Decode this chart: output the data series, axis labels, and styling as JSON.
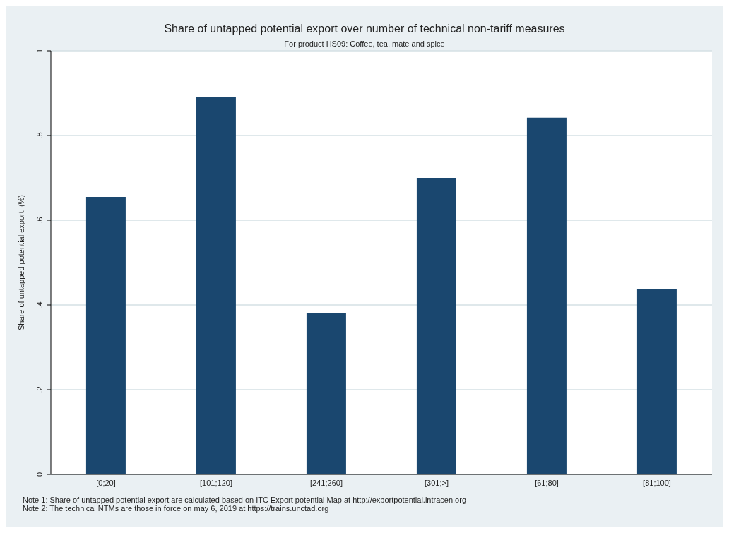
{
  "chart_data": {
    "type": "bar",
    "title": "Share of untapped potential export over number of technical non-tariff measures",
    "subtitle": "For product HS09: Coffee, tea, mate and spice",
    "ylabel": "Share of untapped potential export, (%)",
    "categories": [
      "[0;20]",
      "[101;120]",
      "[241;260]",
      "[301;>]",
      "[61;80]",
      "[81;100]"
    ],
    "values": [
      0.655,
      0.89,
      0.38,
      0.7,
      0.842,
      0.438
    ],
    "color": "#1a476f",
    "ylim": [
      0,
      1
    ],
    "yticks": [
      0,
      {
        "value": 0.2,
        "label": ".2"
      },
      {
        "value": 0.4,
        "label": ".4"
      },
      {
        "value": 0.6,
        "label": ".6"
      },
      {
        "value": 0.8,
        "label": ".8"
      },
      1
    ],
    "grid": "y",
    "annotations": [
      "Note 1: Share of untapped potential export are calculated based on ITC Export potential Map at http://exportpotential.intracen.org",
      "Note 2: The technical NTMs are those in force on may 6, 2019 at https://trains.unctad.org"
    ]
  }
}
